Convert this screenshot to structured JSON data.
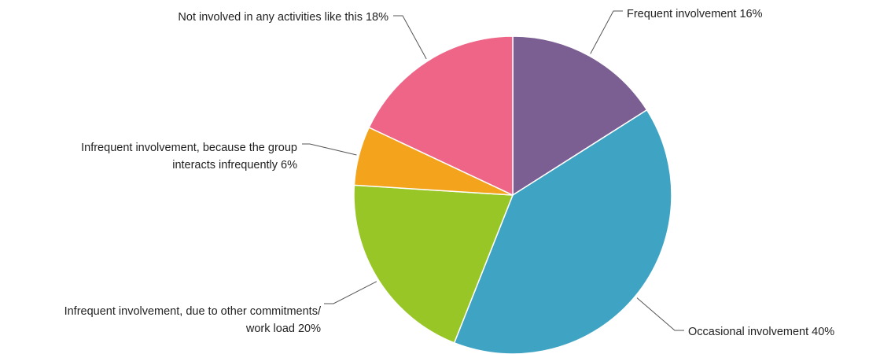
{
  "chart_data": {
    "type": "pie",
    "start_angle_deg": 0,
    "direction": "clockwise",
    "title": "",
    "slices": [
      {
        "label_lines": [
          "Frequent involvement 16%"
        ],
        "value": 16,
        "color": "#7B5F93"
      },
      {
        "label_lines": [
          "Occasional involvement 40%"
        ],
        "value": 40,
        "color": "#3FA3C3"
      },
      {
        "label_lines": [
          "Infrequent involvement, due to other commitments/",
          "work load 20%"
        ],
        "value": 20,
        "color": "#97C626"
      },
      {
        "label_lines": [
          "Infrequent involvement, because the group",
          "interacts infrequently 6%"
        ],
        "value": 6,
        "color": "#F4A31C"
      },
      {
        "label_lines": [
          "Not involved in any activities like this 18%"
        ],
        "value": 18,
        "color": "#EE6588"
      }
    ]
  }
}
